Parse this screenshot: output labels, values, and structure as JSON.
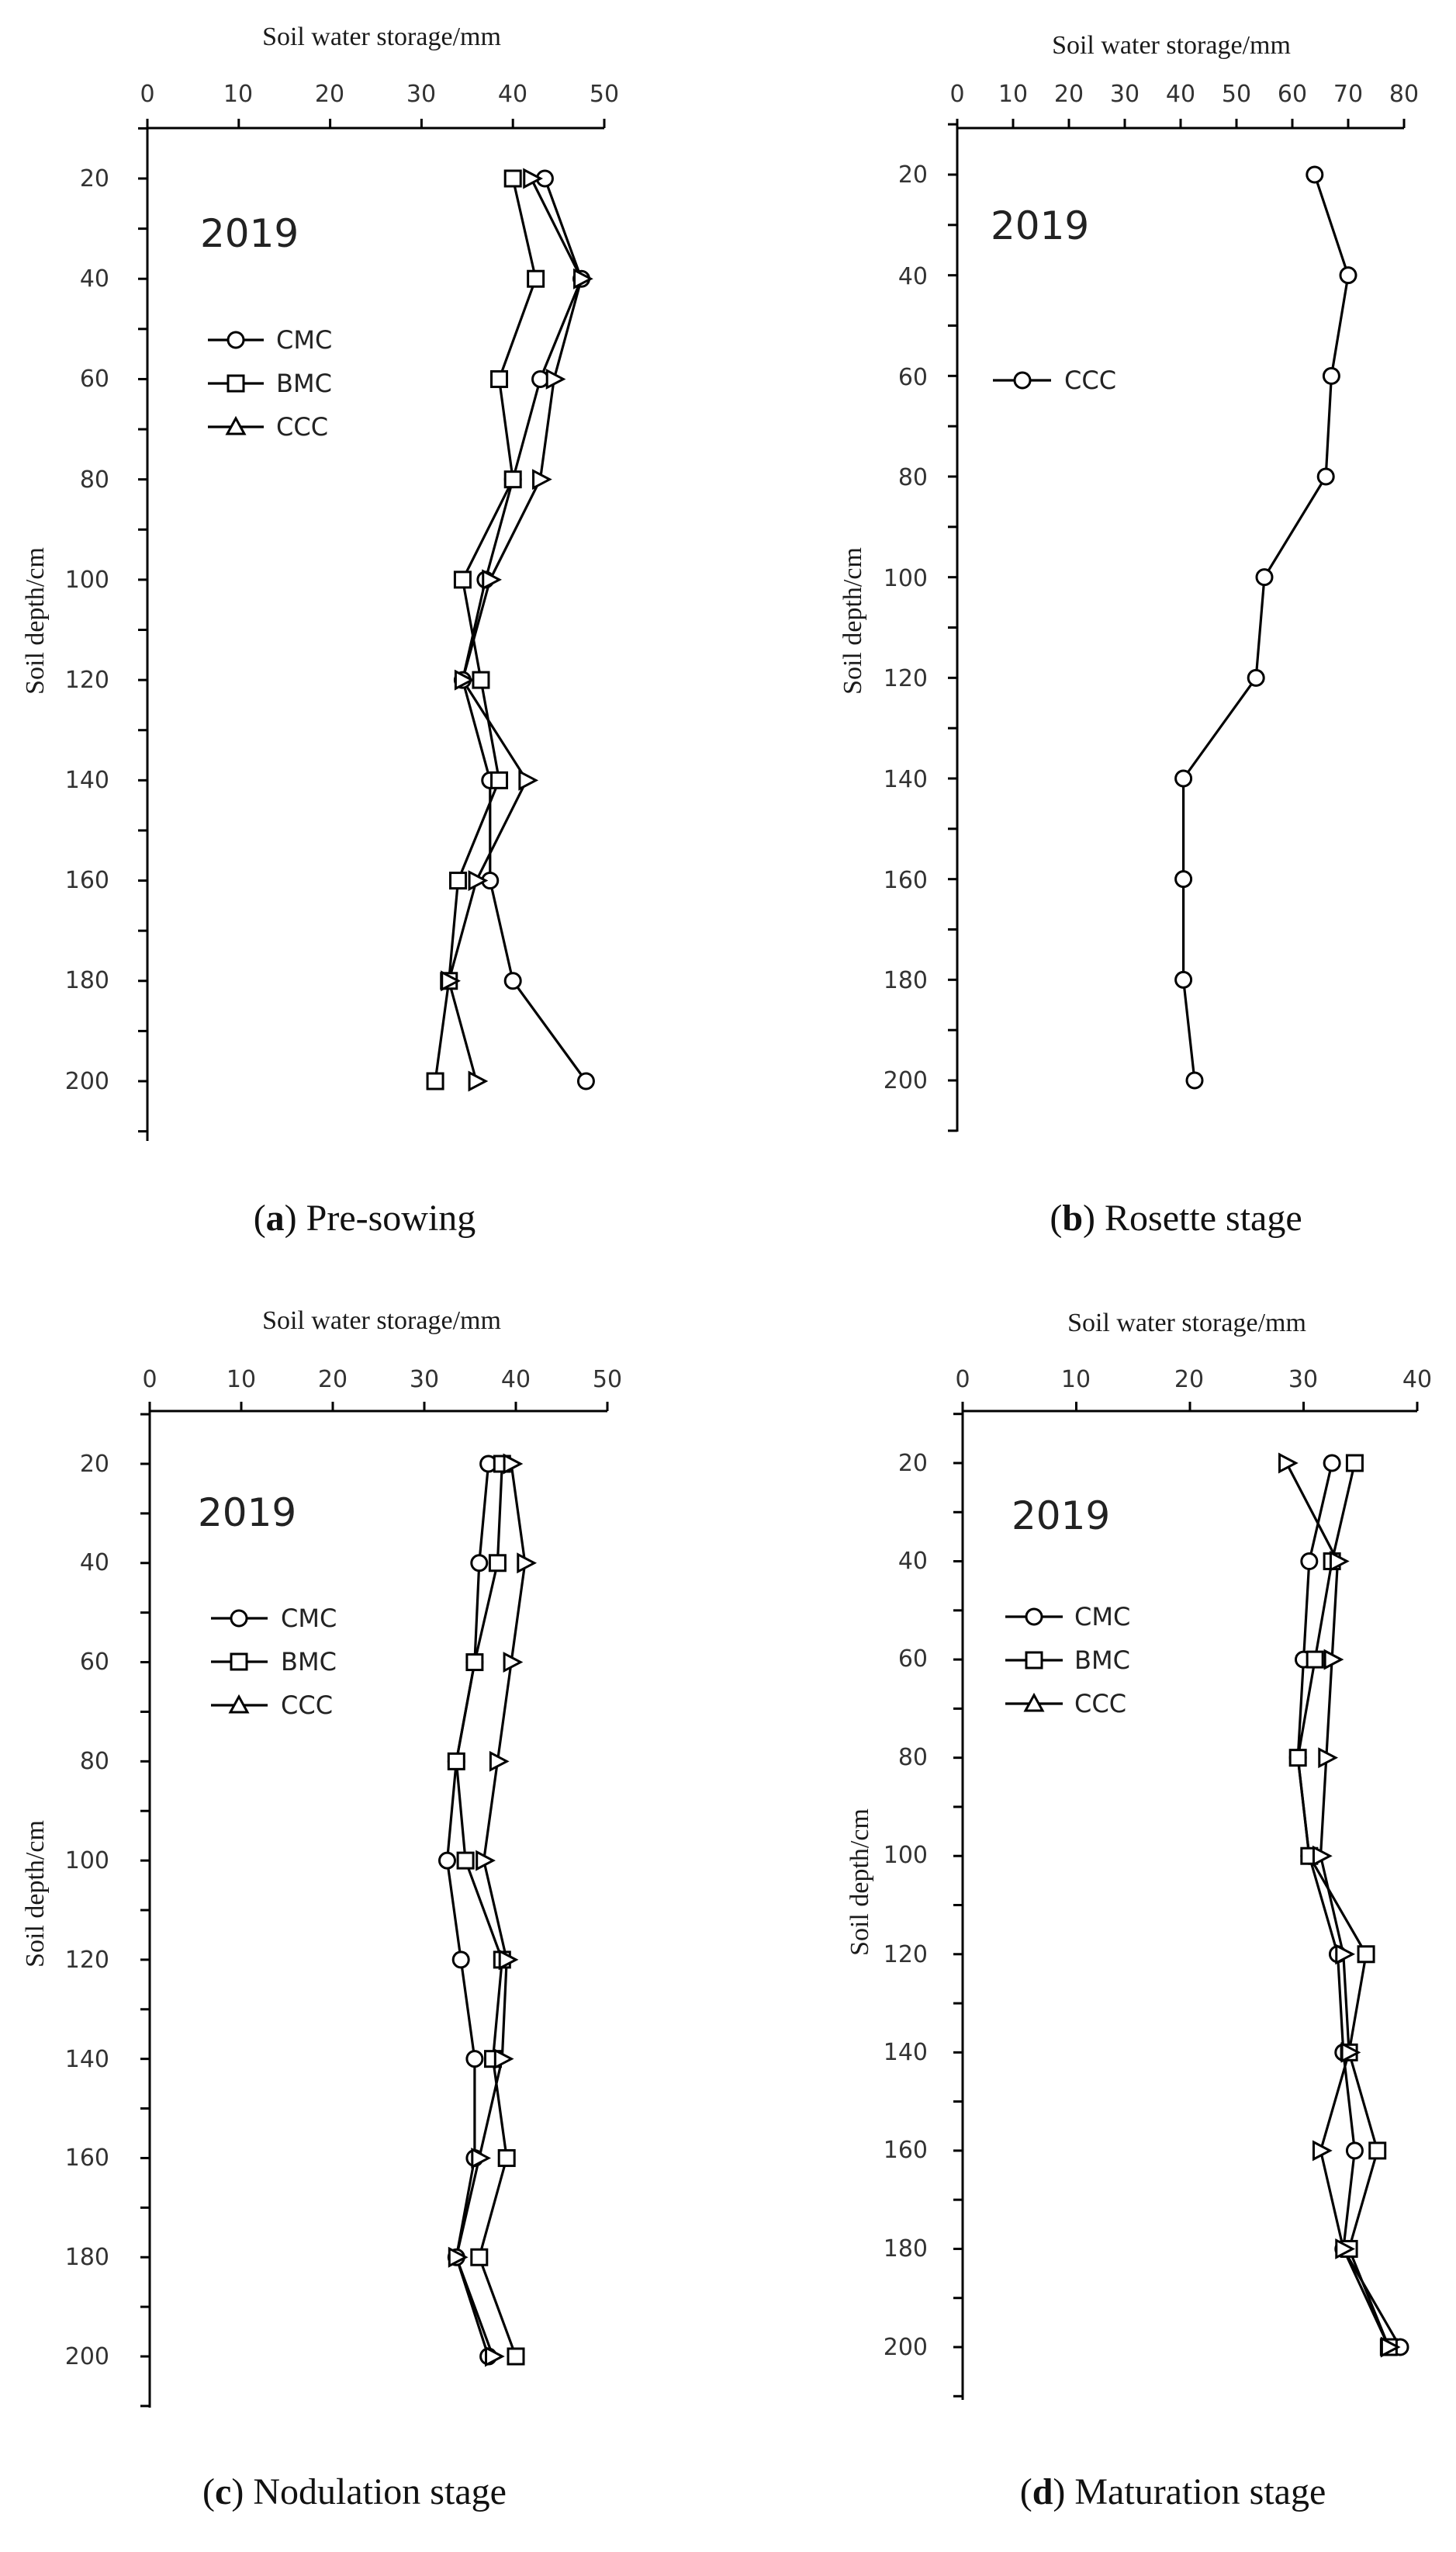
{
  "chart_data": [
    {
      "type": "line",
      "panel": "a",
      "caption_letter": "a",
      "caption_text": " Pre-sowing",
      "xlabel": "Soil water storage",
      "xlabel_unit": "/mm",
      "ylabel": "Soil depth",
      "ylabel_unit": "/cm",
      "year": "2019",
      "xlim": [
        0,
        50
      ],
      "xticks": [
        0,
        10,
        20,
        30,
        40,
        50
      ],
      "ylim": [
        10,
        210
      ],
      "yticks": [
        20,
        40,
        60,
        80,
        100,
        120,
        140,
        160,
        180,
        200
      ],
      "depths": [
        20,
        40,
        60,
        80,
        100,
        120,
        140,
        160,
        180,
        200
      ],
      "legend": [
        "CMC",
        "BMC",
        "CCC"
      ],
      "series": [
        {
          "name": "CMC",
          "marker": "circle",
          "values": [
            43.5,
            47.5,
            43,
            40,
            37,
            34.5,
            37.5,
            37.5,
            40,
            48
          ]
        },
        {
          "name": "BMC",
          "marker": "square",
          "values": [
            40,
            42.5,
            38.5,
            40,
            34.5,
            36.5,
            38.5,
            34,
            33,
            31.5
          ]
        },
        {
          "name": "CCC",
          "marker": "triangle",
          "values": [
            42,
            47.5,
            44.5,
            43,
            37.5,
            34.5,
            41.5,
            36,
            33,
            36
          ]
        }
      ]
    },
    {
      "type": "line",
      "panel": "b",
      "caption_letter": "b",
      "caption_text": " Rosette stage",
      "xlabel": "Soil water storage",
      "xlabel_unit": "/mm",
      "ylabel": "Soil depth",
      "ylabel_unit": "/cm",
      "year": "2019",
      "xlim": [
        0,
        80
      ],
      "xticks": [
        0,
        10,
        20,
        30,
        40,
        50,
        60,
        70,
        80
      ],
      "ylim": [
        10,
        210
      ],
      "yticks": [
        20,
        40,
        60,
        80,
        100,
        120,
        140,
        160,
        180,
        200
      ],
      "depths": [
        20,
        40,
        60,
        80,
        100,
        120,
        140,
        160,
        180,
        200
      ],
      "legend": [
        "CCC"
      ],
      "series": [
        {
          "name": "CCC",
          "marker": "circle",
          "values": [
            64,
            70,
            67,
            66,
            55,
            53.5,
            40.5,
            40.5,
            40.5,
            42.5
          ]
        }
      ]
    },
    {
      "type": "line",
      "panel": "c",
      "caption_letter": "c",
      "caption_text": " Nodulation stage",
      "xlabel": "Soil water storage",
      "xlabel_unit": "/mm",
      "ylabel": "Soil depth",
      "ylabel_unit": "/cm",
      "year": "2019",
      "xlim": [
        0,
        50
      ],
      "xticks": [
        0,
        10,
        20,
        30,
        40,
        50
      ],
      "ylim": [
        10,
        210
      ],
      "yticks": [
        20,
        40,
        60,
        80,
        100,
        120,
        140,
        160,
        180,
        200
      ],
      "depths": [
        20,
        40,
        60,
        80,
        100,
        120,
        140,
        160,
        180,
        200
      ],
      "legend": [
        "CMC",
        "BMC",
        "CCC"
      ],
      "series": [
        {
          "name": "CMC",
          "marker": "circle",
          "values": [
            37,
            36,
            35.5,
            33.5,
            32.5,
            34,
            35.5,
            35.5,
            33.5,
            37
          ]
        },
        {
          "name": "BMC",
          "marker": "square",
          "values": [
            38.5,
            38,
            35.5,
            33.5,
            34.5,
            38.5,
            37.5,
            39,
            36,
            40
          ]
        },
        {
          "name": "CCC",
          "marker": "triangle",
          "values": [
            39.5,
            41,
            39.5,
            38,
            36.5,
            39,
            38.5,
            36,
            33.5,
            37.5
          ]
        }
      ]
    },
    {
      "type": "line",
      "panel": "d",
      "caption_letter": "d",
      "caption_text": " Maturation stage",
      "xlabel": "Soil water storage",
      "xlabel_unit": "/mm",
      "ylabel": "Soil depth",
      "ylabel_unit": "/cm",
      "year": "2019",
      "xlim": [
        0,
        40
      ],
      "xticks": [
        0,
        10,
        20,
        30,
        40
      ],
      "ylim": [
        10,
        210
      ],
      "yticks": [
        20,
        40,
        60,
        80,
        100,
        120,
        140,
        160,
        180,
        200
      ],
      "depths": [
        20,
        40,
        60,
        80,
        100,
        120,
        140,
        160,
        180,
        200
      ],
      "legend": [
        "CMC",
        "BMC",
        "CCC"
      ],
      "series": [
        {
          "name": "CMC",
          "marker": "circle",
          "values": [
            32.5,
            30.5,
            30,
            29.5,
            30.5,
            33,
            33.5,
            34.5,
            33.5,
            38.5
          ]
        },
        {
          "name": "BMC",
          "marker": "square",
          "values": [
            34.5,
            32.5,
            31,
            29.5,
            30.5,
            35.5,
            34,
            36.5,
            34,
            37.5
          ]
        },
        {
          "name": "CCC",
          "marker": "triangle",
          "values": [
            28.5,
            33,
            32.5,
            32,
            31.5,
            33.5,
            34,
            31.5,
            33.5,
            37.5
          ]
        }
      ]
    }
  ]
}
